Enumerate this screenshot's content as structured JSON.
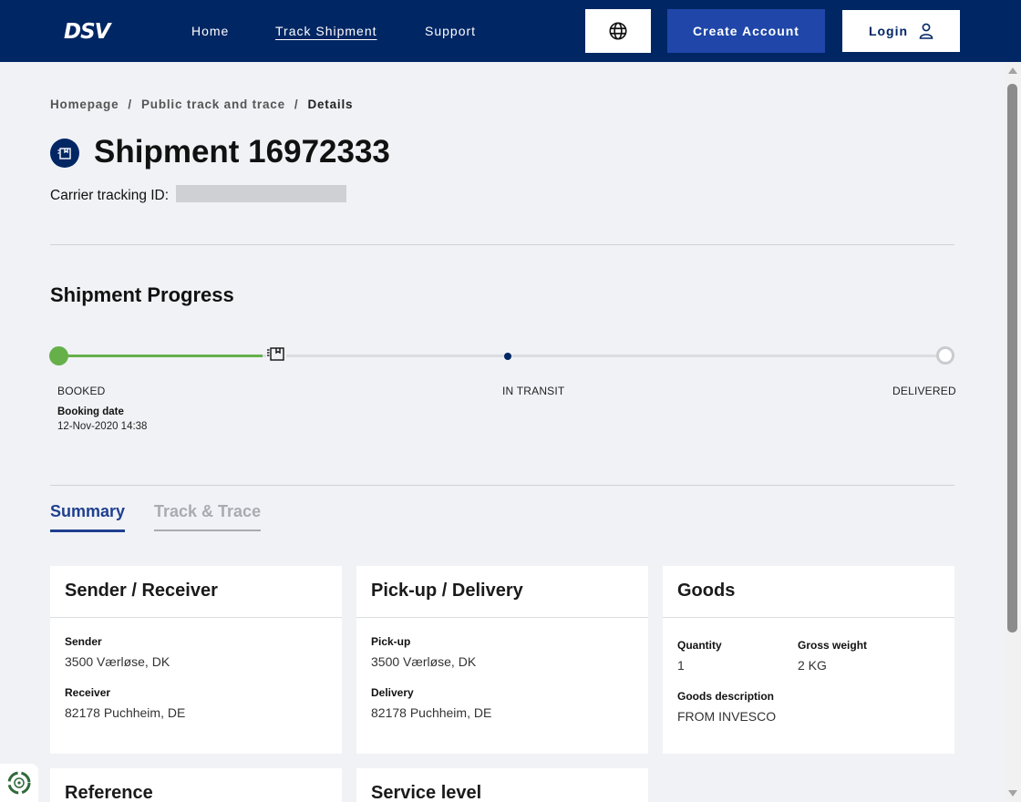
{
  "header": {
    "logo": "DSV",
    "nav": [
      {
        "label": "Home"
      },
      {
        "label": "Track Shipment"
      },
      {
        "label": "Support"
      }
    ],
    "create_account": "Create Account",
    "login": "Login"
  },
  "breadcrumb": {
    "items": [
      "Homepage",
      "Public track and trace",
      "Details"
    ],
    "separator": "/"
  },
  "shipment": {
    "title": "Shipment 16972333",
    "carrier_label": "Carrier tracking ID:"
  },
  "progress": {
    "title": "Shipment Progress",
    "steps": [
      "BOOKED",
      "IN TRANSIT",
      "DELIVERED"
    ],
    "booking_label": "Booking date",
    "booking_value": "12-Nov-2020 14:38"
  },
  "tabs": [
    {
      "label": "Summary",
      "active": true
    },
    {
      "label": "Track & Trace",
      "active": false
    }
  ],
  "cards": {
    "sender_receiver": {
      "title": "Sender / Receiver",
      "sender_label": "Sender",
      "sender_value": "3500 Værløse, DK",
      "receiver_label": "Receiver",
      "receiver_value": "82178 Puchheim, DE"
    },
    "pickup_delivery": {
      "title": "Pick-up / Delivery",
      "pickup_label": "Pick-up",
      "pickup_value": "3500 Værløse, DK",
      "delivery_label": "Delivery",
      "delivery_value": "82178 Puchheim, DE"
    },
    "goods": {
      "title": "Goods",
      "quantity_label": "Quantity",
      "quantity_value": "1",
      "weight_label": "Gross weight",
      "weight_value": "2 KG",
      "description_label": "Goods description",
      "description_value": "FROM INVESCO"
    },
    "reference": {
      "title": "Reference"
    },
    "service_level": {
      "title": "Service level"
    }
  },
  "colors": {
    "brand_navy": "#002664",
    "accent_blue": "#1f46a8",
    "progress_green": "#66b04a"
  }
}
